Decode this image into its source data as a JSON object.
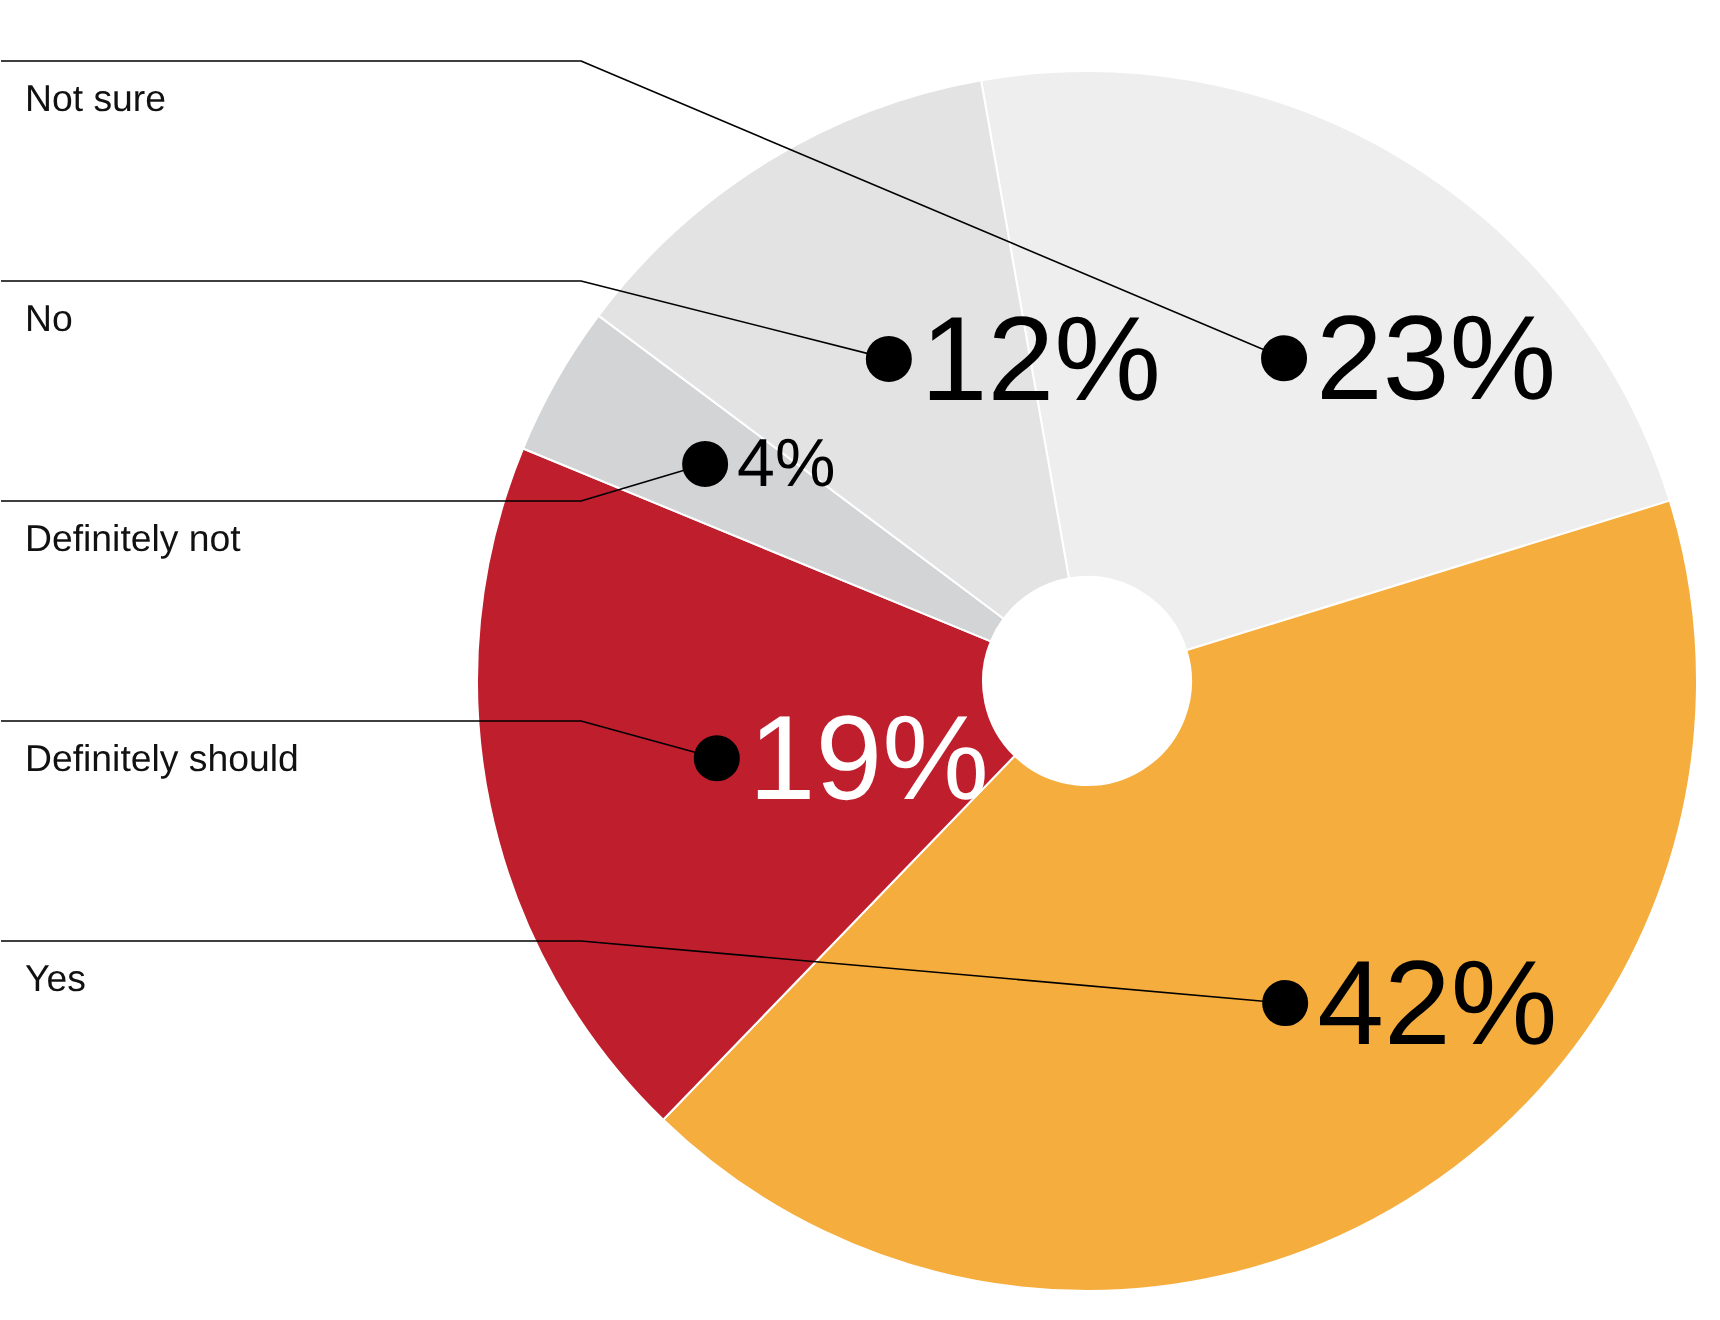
{
  "chart_data": {
    "type": "donut",
    "categories": [
      "Not sure",
      "Yes",
      "Definitely should",
      "Definitely not",
      "No"
    ],
    "values": [
      23,
      42,
      19,
      4,
      12
    ],
    "colors": [
      "#eeeeef",
      "#f5ad3d",
      "#bf1e2d",
      "#d3d4d6",
      "#e3e3e4"
    ],
    "value_labels": [
      "23%",
      "42%",
      "19%",
      "4%",
      "12%"
    ],
    "legend": false
  }
}
